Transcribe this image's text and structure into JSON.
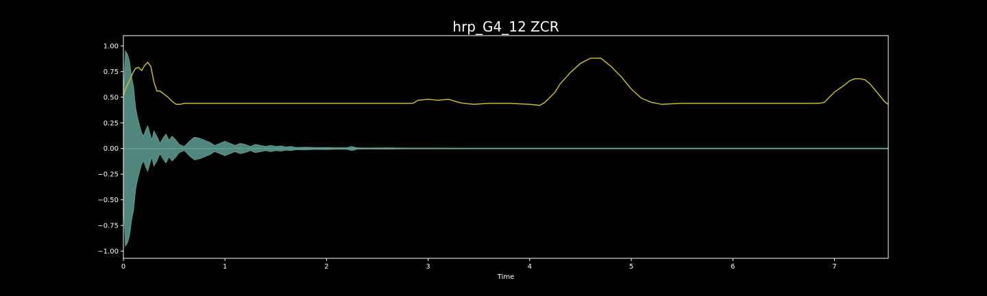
{
  "chart_data": {
    "type": "line",
    "title": "hrp_G4_12 ZCR",
    "xlabel": "Time",
    "ylabel": "",
    "xlim": [
      0,
      7.53
    ],
    "ylim": [
      -1.07,
      1.1
    ],
    "x_ticks": [
      0,
      1,
      2,
      3,
      4,
      5,
      6,
      7
    ],
    "x_tick_labels": [
      "0",
      "1",
      "2",
      "3",
      "4",
      "5",
      "6",
      "7"
    ],
    "y_ticks": [
      1.0,
      0.75,
      0.5,
      0.25,
      0.0,
      -0.25,
      -0.5,
      -0.75,
      -1.0
    ],
    "y_tick_labels": [
      "1.00",
      "0.75",
      "0.50",
      "0.25",
      "0.00",
      "−0.25",
      "−0.50",
      "−0.75",
      "−1.00"
    ],
    "grid": false,
    "background": "#000000",
    "frame_color": "#ffffff",
    "series": [
      {
        "kind": "waveform-envelope",
        "color": "#5f9e92",
        "x": [
          0.0,
          0.02,
          0.04,
          0.06,
          0.08,
          0.1,
          0.12,
          0.14,
          0.16,
          0.18,
          0.2,
          0.22,
          0.24,
          0.26,
          0.28,
          0.3,
          0.33,
          0.36,
          0.39,
          0.42,
          0.45,
          0.48,
          0.51,
          0.55,
          0.6,
          0.65,
          0.7,
          0.75,
          0.8,
          0.85,
          0.9,
          0.95,
          1.0,
          1.05,
          1.1,
          1.15,
          1.2,
          1.25,
          1.3,
          1.35,
          1.4,
          1.45,
          1.5,
          1.55,
          1.6,
          1.65,
          1.7,
          1.8,
          1.9,
          2.0,
          2.1,
          2.2,
          2.25,
          2.3,
          2.4,
          2.6,
          2.8,
          3.0,
          3.5,
          4.0,
          5.0,
          6.0,
          7.0,
          7.53
        ],
        "amplitude": [
          0.5,
          0.95,
          0.92,
          0.85,
          0.7,
          0.6,
          0.4,
          0.3,
          0.22,
          0.15,
          0.12,
          0.18,
          0.22,
          0.15,
          0.08,
          0.17,
          0.12,
          0.05,
          0.1,
          0.14,
          0.08,
          0.12,
          0.09,
          0.04,
          0.02,
          0.07,
          0.11,
          0.1,
          0.08,
          0.06,
          0.03,
          0.05,
          0.07,
          0.05,
          0.03,
          0.05,
          0.04,
          0.02,
          0.04,
          0.03,
          0.02,
          0.03,
          0.02,
          0.025,
          0.015,
          0.02,
          0.01,
          0.012,
          0.008,
          0.01,
          0.006,
          0.008,
          0.02,
          0.006,
          0.005,
          0.006,
          0.004,
          0.004,
          0.003,
          0.003,
          0.003,
          0.003,
          0.003,
          0.003
        ]
      },
      {
        "kind": "zcr",
        "color": "#c8bc2c",
        "x": [
          0.0,
          0.03,
          0.06,
          0.09,
          0.12,
          0.15,
          0.18,
          0.21,
          0.24,
          0.27,
          0.3,
          0.33,
          0.36,
          0.4,
          0.44,
          0.48,
          0.52,
          0.56,
          0.6,
          1.0,
          1.5,
          2.0,
          2.5,
          2.85,
          2.9,
          3.0,
          3.1,
          3.2,
          3.3,
          3.35,
          3.45,
          3.6,
          3.8,
          4.0,
          4.1,
          4.15,
          4.25,
          4.3,
          4.4,
          4.5,
          4.6,
          4.7,
          4.8,
          4.9,
          5.0,
          5.1,
          5.2,
          5.3,
          5.5,
          6.0,
          6.5,
          6.85,
          6.9,
          7.0,
          7.1,
          7.15,
          7.2,
          7.25,
          7.3,
          7.35,
          7.4,
          7.45,
          7.5,
          7.53
        ],
        "y": [
          0.52,
          0.6,
          0.66,
          0.73,
          0.78,
          0.79,
          0.76,
          0.81,
          0.84,
          0.8,
          0.65,
          0.56,
          0.56,
          0.53,
          0.5,
          0.46,
          0.43,
          0.43,
          0.44,
          0.44,
          0.44,
          0.44,
          0.44,
          0.44,
          0.47,
          0.48,
          0.47,
          0.48,
          0.45,
          0.44,
          0.43,
          0.44,
          0.44,
          0.43,
          0.42,
          0.45,
          0.55,
          0.63,
          0.74,
          0.83,
          0.88,
          0.88,
          0.8,
          0.7,
          0.58,
          0.49,
          0.45,
          0.43,
          0.44,
          0.44,
          0.44,
          0.44,
          0.45,
          0.55,
          0.62,
          0.66,
          0.68,
          0.68,
          0.67,
          0.63,
          0.57,
          0.51,
          0.45,
          0.43
        ]
      }
    ]
  }
}
